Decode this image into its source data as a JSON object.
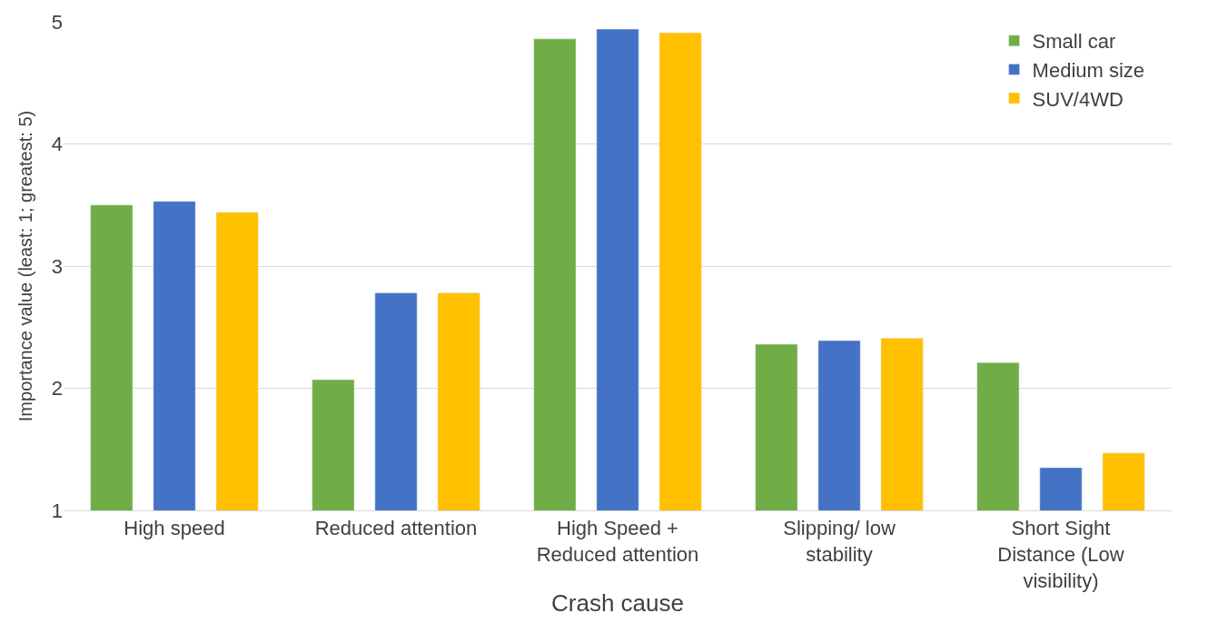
{
  "chart_data": {
    "type": "bar",
    "xlabel": "Crash cause",
    "ylabel": "Importance value (least: 1; greatest: 5)",
    "categories": [
      "High speed",
      "Reduced attention",
      "High Speed + Reduced attention",
      "Slipping/ low stability",
      "Short Sight Distance (Low visibility)"
    ],
    "series": [
      {
        "name": "Small car",
        "color": "#70ad47",
        "values": [
          3.5,
          2.07,
          4.86,
          2.36,
          2.21
        ]
      },
      {
        "name": "Medium size",
        "color": "#4472c4",
        "values": [
          3.53,
          2.78,
          4.94,
          2.39,
          1.35
        ]
      },
      {
        "name": "SUV/4WD",
        "color": "#ffc000",
        "values": [
          3.44,
          2.78,
          4.91,
          2.41,
          1.47
        ]
      }
    ],
    "ylim": [
      1,
      5
    ],
    "yticks": [
      1,
      2,
      3,
      4,
      5
    ],
    "grid": "y",
    "legend": "top right"
  }
}
